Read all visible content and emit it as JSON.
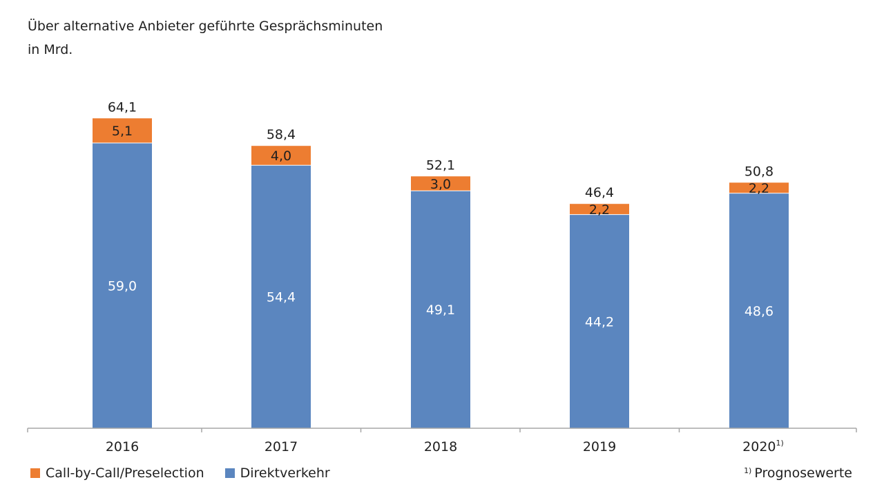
{
  "title": "Über alternative Anbieter geführte Gesprächsminuten",
  "subtitle": "in Mrd.",
  "footnote": {
    "marker": "1)",
    "text": "Prognosewerte"
  },
  "colors": {
    "call_by_call": "#ed7d31",
    "direkt": "#5b86bf",
    "axis": "#a6a6a6"
  },
  "chart_data": {
    "type": "bar",
    "stacked": true,
    "categories": [
      "2016",
      "2017",
      "2018",
      "2019",
      "2020"
    ],
    "category_footnotes": [
      "",
      "",
      "",
      "",
      "1)"
    ],
    "series": [
      {
        "name": "Direktverkehr",
        "values": [
          59.0,
          54.4,
          49.1,
          44.2,
          48.6
        ],
        "labels": [
          "59,0",
          "54,4",
          "49,1",
          "44,2",
          "48,6"
        ]
      },
      {
        "name": "Call-by-Call/Preselection",
        "values": [
          5.1,
          4.0,
          3.0,
          2.2,
          2.2
        ],
        "labels": [
          "5,1",
          "4,0",
          "3,0",
          "2,2",
          "2,2"
        ]
      }
    ],
    "totals": [
      64.1,
      58.4,
      52.1,
      46.4,
      50.8
    ],
    "total_labels": [
      "64,1",
      "58,4",
      "52,1",
      "46,4",
      "50,8"
    ],
    "legend": [
      "Call-by-Call/Preselection",
      "Direktverkehr"
    ],
    "legend_position": "bottom-left",
    "grid": false,
    "ylim": [
      0,
      70
    ]
  }
}
